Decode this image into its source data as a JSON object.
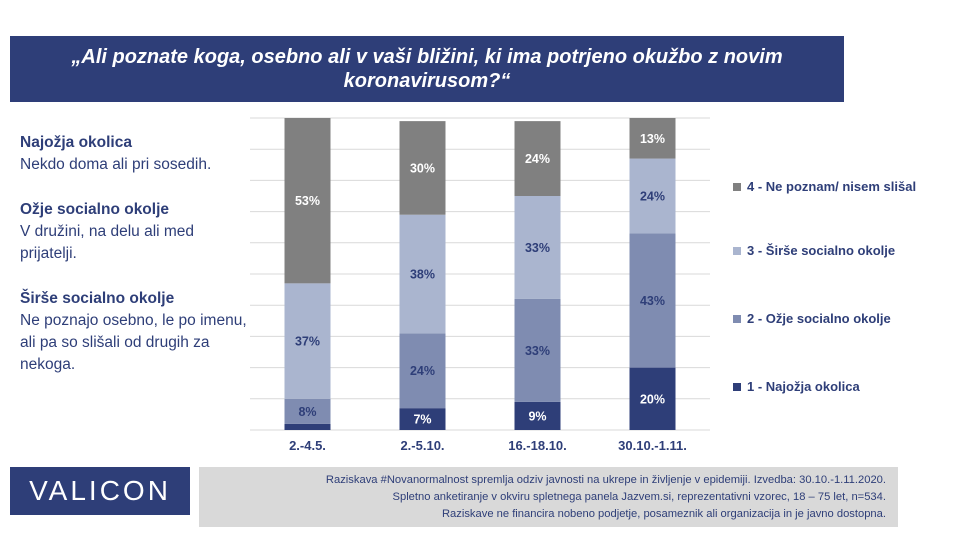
{
  "title": "„Ali poznate koga, osebno ali v vaši bližini, ki ima potrjeno okužbo z novim koronavirusom?“",
  "definitions": [
    {
      "term": "Najožja okolica",
      "desc": "Nekdo doma ali pri sosedih."
    },
    {
      "term": "Ožje socialno okolje",
      "desc": "V družini, na delu ali med prijatelji."
    },
    {
      "term": "Širše socialno okolje",
      "desc": "Ne poznajo osebno, le po imenu, ali pa so slišali od drugih za nekoga."
    }
  ],
  "chart_data": {
    "type": "bar",
    "stacked": true,
    "categories": [
      "2.-4.5.",
      "2.-5.10.",
      "16.-18.10.",
      "30.10.-1.11."
    ],
    "ylim": [
      0,
      100
    ],
    "grid": true,
    "legend_position": "right",
    "series": [
      {
        "name": "1 - Najožja okolica",
        "values": [
          2,
          7,
          9,
          20
        ],
        "labels": [
          "",
          "7%",
          "9%",
          "20%"
        ],
        "color": "#2E3E78",
        "label_color": "#ffffff"
      },
      {
        "name": "2 - Ožje socialno okolje",
        "values": [
          8,
          24,
          33,
          43
        ],
        "labels": [
          "8%",
          "24%",
          "33%",
          "43%"
        ],
        "color": "#7F8CB1",
        "label_color": "#2E3E78"
      },
      {
        "name": "3 - Širše socialno okolje",
        "values": [
          37,
          38,
          33,
          24
        ],
        "labels": [
          "37%",
          "38%",
          "33%",
          "24%"
        ],
        "color": "#AAB5CF",
        "label_color": "#2E3E78"
      },
      {
        "name": "4 - Ne poznam/ nisem slišal",
        "values": [
          53,
          30,
          24,
          13
        ],
        "labels": [
          "53%",
          "30%",
          "24%",
          "13%"
        ],
        "color": "#808080",
        "label_color": "#ffffff"
      }
    ]
  },
  "logo": "VALICON",
  "footnote": [
    "Raziskava #Novanormalnost spremlja odziv javnosti na ukrepe in življenje v epidemiji. Izvedba: 30.10.-1.11.2020.",
    "Spletno anketiranje v okviru spletnega panela Jazvem.si, reprezentativni vzorec, 18 – 75 let, n=534.",
    "Raziskave ne financira nobeno podjetje, posameznik ali organizacija in je javno dostopna."
  ]
}
